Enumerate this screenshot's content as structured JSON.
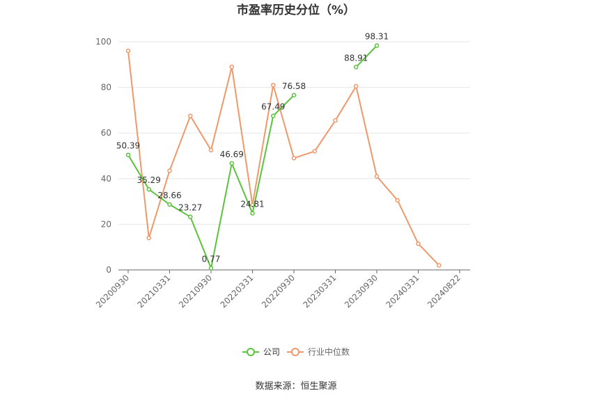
{
  "chart_data": {
    "type": "line",
    "title": "市盈率历史分位（%）",
    "ylim": [
      0,
      100
    ],
    "yticks": [
      0,
      20,
      40,
      60,
      80,
      100
    ],
    "x": [
      "20200930",
      "20201231",
      "20210331",
      "20210630",
      "20210930",
      "20211231",
      "20220331",
      "20220630",
      "20220930",
      "20221231",
      "20230331",
      "20230630",
      "20230930",
      "20231231",
      "20240331",
      "20240630",
      "20240822"
    ],
    "xtick_labels": [
      "20200930",
      "20210331",
      "20210930",
      "20220331",
      "20220930",
      "20230331",
      "20230930",
      "20240331",
      "20240822"
    ],
    "series": [
      {
        "name": "公司",
        "color": "#5ac33c",
        "values": [
          50.39,
          35.29,
          28.66,
          23.27,
          0.77,
          46.69,
          24.81,
          67.49,
          76.58,
          null,
          null,
          88.91,
          98.31,
          null,
          null,
          null,
          null
        ],
        "labels": [
          "50.39",
          "35.29",
          "28.66",
          "23.27",
          "0.77",
          "46.69",
          "24.81",
          "67.49",
          "76.58",
          null,
          null,
          "88.91",
          "98.31",
          null,
          null,
          null,
          null
        ]
      },
      {
        "name": "行业中位数",
        "color": "#f0986a",
        "values": [
          96,
          14,
          43.5,
          67.5,
          52.5,
          89,
          28.5,
          81,
          49,
          52,
          65.5,
          80.5,
          41,
          30.5,
          11.5,
          2,
          null
        ]
      }
    ],
    "legend": "bottom-center",
    "source": "数据来源：恒生聚源"
  }
}
